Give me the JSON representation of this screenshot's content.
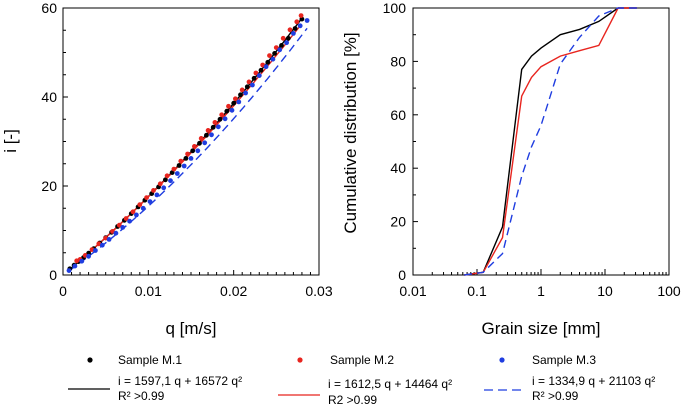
{
  "chart_data": [
    {
      "type": "scatter",
      "xlabel": "q [m/s]",
      "ylabel": "i [-]",
      "xlim": [
        0,
        0.03
      ],
      "ylim": [
        0,
        60
      ],
      "xticks": [
        0,
        0.01,
        0.02,
        0.03
      ],
      "xtick_labels": [
        "0",
        "0.01",
        "0.02",
        "0.03"
      ],
      "yticks": [
        0,
        20,
        40,
        60
      ],
      "ytick_labels": [
        "0",
        "20",
        "40",
        "60"
      ],
      "series": [
        {
          "name": "Sample M.1",
          "color": "#000000",
          "x": [
            0.0008,
            0.0013,
            0.0018,
            0.0024,
            0.003,
            0.0036,
            0.0043,
            0.005,
            0.0057,
            0.0064,
            0.0072,
            0.008,
            0.0088,
            0.0096,
            0.0104,
            0.0112,
            0.012,
            0.0128,
            0.0136,
            0.0144,
            0.0152,
            0.016,
            0.0168,
            0.0176,
            0.0184,
            0.0192,
            0.02,
            0.0208,
            0.0216,
            0.0224,
            0.0232,
            0.024,
            0.0248,
            0.0256,
            0.0264,
            0.0272,
            0.028
          ],
          "y": [
            1.4,
            2.2,
            3.0,
            3.9,
            4.9,
            5.9,
            7.2,
            8.4,
            9.6,
            10.9,
            12.3,
            13.8,
            15.3,
            16.8,
            18.3,
            19.8,
            21.4,
            23.0,
            24.6,
            26.2,
            27.9,
            29.6,
            31.4,
            33.2,
            35.0,
            36.8,
            38.6,
            40.5,
            42.3,
            44.2,
            46.0,
            47.8,
            49.8,
            51.6,
            53.2,
            55.4,
            57.5
          ],
          "fit_label": "i = 1597,1 q + 16572 q²",
          "r2_label": "R² >0.99",
          "fit": {
            "a": 1597.1,
            "b": 16572
          }
        },
        {
          "name": "Sample M.2",
          "color": "#e8251f",
          "x": [
            0.0016,
            0.002,
            0.0026,
            0.0034,
            0.0042,
            0.005,
            0.0058,
            0.0066,
            0.0074,
            0.0082,
            0.009,
            0.0098,
            0.0106,
            0.0114,
            0.0122,
            0.013,
            0.0138,
            0.0146,
            0.0154,
            0.0162,
            0.017,
            0.0178,
            0.0186,
            0.0194,
            0.0202,
            0.021,
            0.0218,
            0.0226,
            0.0234,
            0.0242,
            0.025,
            0.0258,
            0.0266,
            0.0274,
            0.0279
          ],
          "y": [
            3.2,
            3.5,
            4.4,
            5.7,
            7.0,
            8.3,
            9.8,
            11.2,
            12.7,
            14.2,
            15.8,
            17.4,
            19.0,
            20.5,
            22.3,
            23.8,
            25.6,
            27.2,
            28.9,
            30.7,
            32.5,
            34.3,
            36.0,
            37.9,
            39.6,
            41.6,
            43.4,
            45.4,
            47.2,
            49.3,
            51.1,
            53.2,
            55.1,
            56.9,
            58.3
          ]
        },
        {
          "name": "Sample M.3",
          "color": "#1f3de0",
          "x": [
            0.0007,
            0.0014,
            0.0022,
            0.003,
            0.0038,
            0.0046,
            0.0054,
            0.0062,
            0.007,
            0.0078,
            0.0086,
            0.0094,
            0.0102,
            0.011,
            0.0118,
            0.0126,
            0.0134,
            0.0142,
            0.015,
            0.0158,
            0.0166,
            0.0174,
            0.0182,
            0.019,
            0.0198,
            0.0206,
            0.0214,
            0.0222,
            0.023,
            0.0238,
            0.0246,
            0.0254,
            0.0262,
            0.027,
            0.0278,
            0.0286
          ],
          "y": [
            1.0,
            2.0,
            3.1,
            4.2,
            5.5,
            6.7,
            8.0,
            9.4,
            10.7,
            12.1,
            13.5,
            15.0,
            16.5,
            18.0,
            19.6,
            21.2,
            22.8,
            24.5,
            26.2,
            27.9,
            29.7,
            31.5,
            33.3,
            35.1,
            37.0,
            38.9,
            40.9,
            42.7,
            44.8,
            46.8,
            48.5,
            50.6,
            52.2,
            54.3,
            56.0,
            57.2
          ]
        }
      ],
      "fits": [
        {
          "series": "Sample M.1",
          "label": "i = 1597,1 q + 16572 q²",
          "r2": "R² >0.99",
          "a": 1597.1,
          "b": 16572,
          "color": "#000000",
          "dash": "solid"
        },
        {
          "series": "Sample M.2",
          "label": "i = 1612,5 q + 14464 q²",
          "r2": "R2 >0.99",
          "a": 1612.5,
          "b": 14464,
          "color": "#e8251f",
          "dash": "solid"
        },
        {
          "series": "Sample M.3",
          "label": "i = 1334,9 q + 21103 q²",
          "r2": "R² >0.99",
          "a": 1334.9,
          "b": 21103,
          "color": "#1f3de0",
          "dash": "dashed"
        }
      ]
    },
    {
      "type": "line",
      "xscale": "log",
      "xlabel": "Grain size [mm]",
      "ylabel": "Cumulative distribution [%]",
      "xlim": [
        0.01,
        100
      ],
      "ylim": [
        0,
        100
      ],
      "xticks": [
        0.01,
        0.1,
        1,
        10,
        100
      ],
      "xtick_labels": [
        "0.01",
        "0.1",
        "1",
        "10",
        "100"
      ],
      "yticks": [
        0,
        20,
        40,
        60,
        80,
        100
      ],
      "ytick_labels": [
        "0",
        "20",
        "40",
        "60",
        "80",
        "100"
      ],
      "series": [
        {
          "name": "Sample M.1",
          "color": "#000000",
          "dash": "solid",
          "x": [
            0.063,
            0.125,
            0.25,
            0.5,
            0.71,
            1,
            2,
            4,
            8,
            16,
            31.5
          ],
          "y": [
            0,
            1,
            18,
            77,
            82,
            85,
            90,
            92,
            95,
            100,
            100
          ]
        },
        {
          "name": "Sample M.2",
          "color": "#e8251f",
          "dash": "solid",
          "x": [
            0.063,
            0.125,
            0.25,
            0.5,
            0.71,
            1,
            2,
            4,
            8,
            16,
            31.5
          ],
          "y": [
            0,
            1,
            14,
            67,
            74,
            78,
            82,
            84,
            86,
            100,
            100
          ]
        },
        {
          "name": "Sample M.3",
          "color": "#1f3de0",
          "dash": "dashed",
          "x": [
            0.063,
            0.125,
            0.25,
            0.5,
            0.71,
            1,
            2,
            4,
            8,
            16,
            31.5
          ],
          "y": [
            0,
            1,
            8,
            37,
            48,
            56,
            79,
            89,
            97,
            100,
            100
          ]
        }
      ]
    }
  ]
}
